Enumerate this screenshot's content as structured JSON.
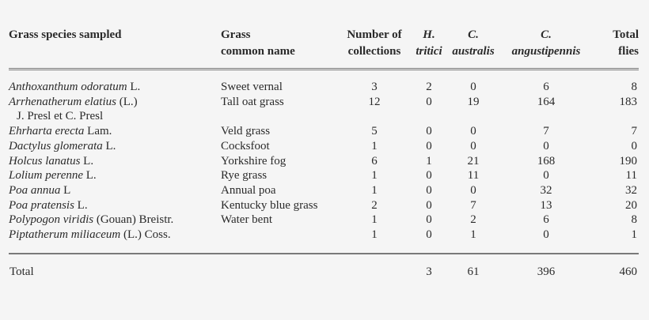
{
  "table": {
    "headers": {
      "species": "Grass species sampled",
      "common_line1": "Grass",
      "common_line2": "common name",
      "collections_line1": "Number of",
      "collections_line2": "collections",
      "h_tritici_line1": "H.",
      "h_tritici_line2": "tritici",
      "c_australis_line1": "C.",
      "c_australis_line2": "australis",
      "c_angustipennis_line1": "C.",
      "c_angustipennis_line2": "angustipennis",
      "total_line1": "Total",
      "total_line2": "flies"
    },
    "rows": [
      {
        "species_italic": "Anthoxanthum odoratum",
        "species_author": " L.",
        "author_line2": "",
        "common": "Sweet vernal",
        "collections": "3",
        "h_tritici": "2",
        "c_australis": "0",
        "c_angustipennis": "6",
        "total": "8"
      },
      {
        "species_italic": "Arrhenatherum elatius",
        "species_author": " (L.)",
        "author_line2": "J. Presl et C. Presl",
        "common": "Tall oat grass",
        "collections": "12",
        "h_tritici": "0",
        "c_australis": "19",
        "c_angustipennis": "164",
        "total": "183"
      },
      {
        "species_italic": "Ehrharta erecta",
        "species_author": " Lam.",
        "author_line2": "",
        "common": "Veld grass",
        "collections": "5",
        "h_tritici": "0",
        "c_australis": "0",
        "c_angustipennis": "7",
        "total": "7"
      },
      {
        "species_italic": "Dactylus glomerata",
        "species_author": " L.",
        "author_line2": "",
        "common": "Cocksfoot",
        "collections": "1",
        "h_tritici": "0",
        "c_australis": "0",
        "c_angustipennis": "0",
        "total": "0"
      },
      {
        "species_italic": "Holcus lanatus",
        "species_author": " L.",
        "author_line2": "",
        "common": "Yorkshire fog",
        "collections": "6",
        "h_tritici": "1",
        "c_australis": "21",
        "c_angustipennis": "168",
        "total": "190"
      },
      {
        "species_italic": "Lolium perenne",
        "species_author": " L.",
        "author_line2": "",
        "common": "Rye grass",
        "collections": "1",
        "h_tritici": "0",
        "c_australis": "11",
        "c_angustipennis": "0",
        "total": "11"
      },
      {
        "species_italic": "Poa annua",
        "species_author": " L",
        "author_line2": "",
        "common": "Annual poa",
        "collections": "1",
        "h_tritici": "0",
        "c_australis": "0",
        "c_angustipennis": "32",
        "total": "32"
      },
      {
        "species_italic": "Poa pratensis",
        "species_author": " L.",
        "author_line2": "",
        "common": "Kentucky blue grass",
        "collections": "2",
        "h_tritici": "0",
        "c_australis": "7",
        "c_angustipennis": "13",
        "total": "20"
      },
      {
        "species_italic": "Polypogon viridis",
        "species_author": " (Gouan) Breistr.",
        "author_line2": "",
        "common": "Water bent",
        "collections": "1",
        "h_tritici": "0",
        "c_australis": "2",
        "c_angustipennis": "6",
        "total": "8"
      },
      {
        "species_italic": "Piptatherum miliaceum",
        "species_author": " (L.) Coss.",
        "author_line2": "",
        "common": "",
        "collections": "1",
        "h_tritici": "0",
        "c_australis": "1",
        "c_angustipennis": "0",
        "total": "1"
      }
    ],
    "footer": {
      "label": "Total",
      "h_tritici": "3",
      "c_australis": "61",
      "c_angustipennis": "396",
      "total": "460"
    }
  }
}
